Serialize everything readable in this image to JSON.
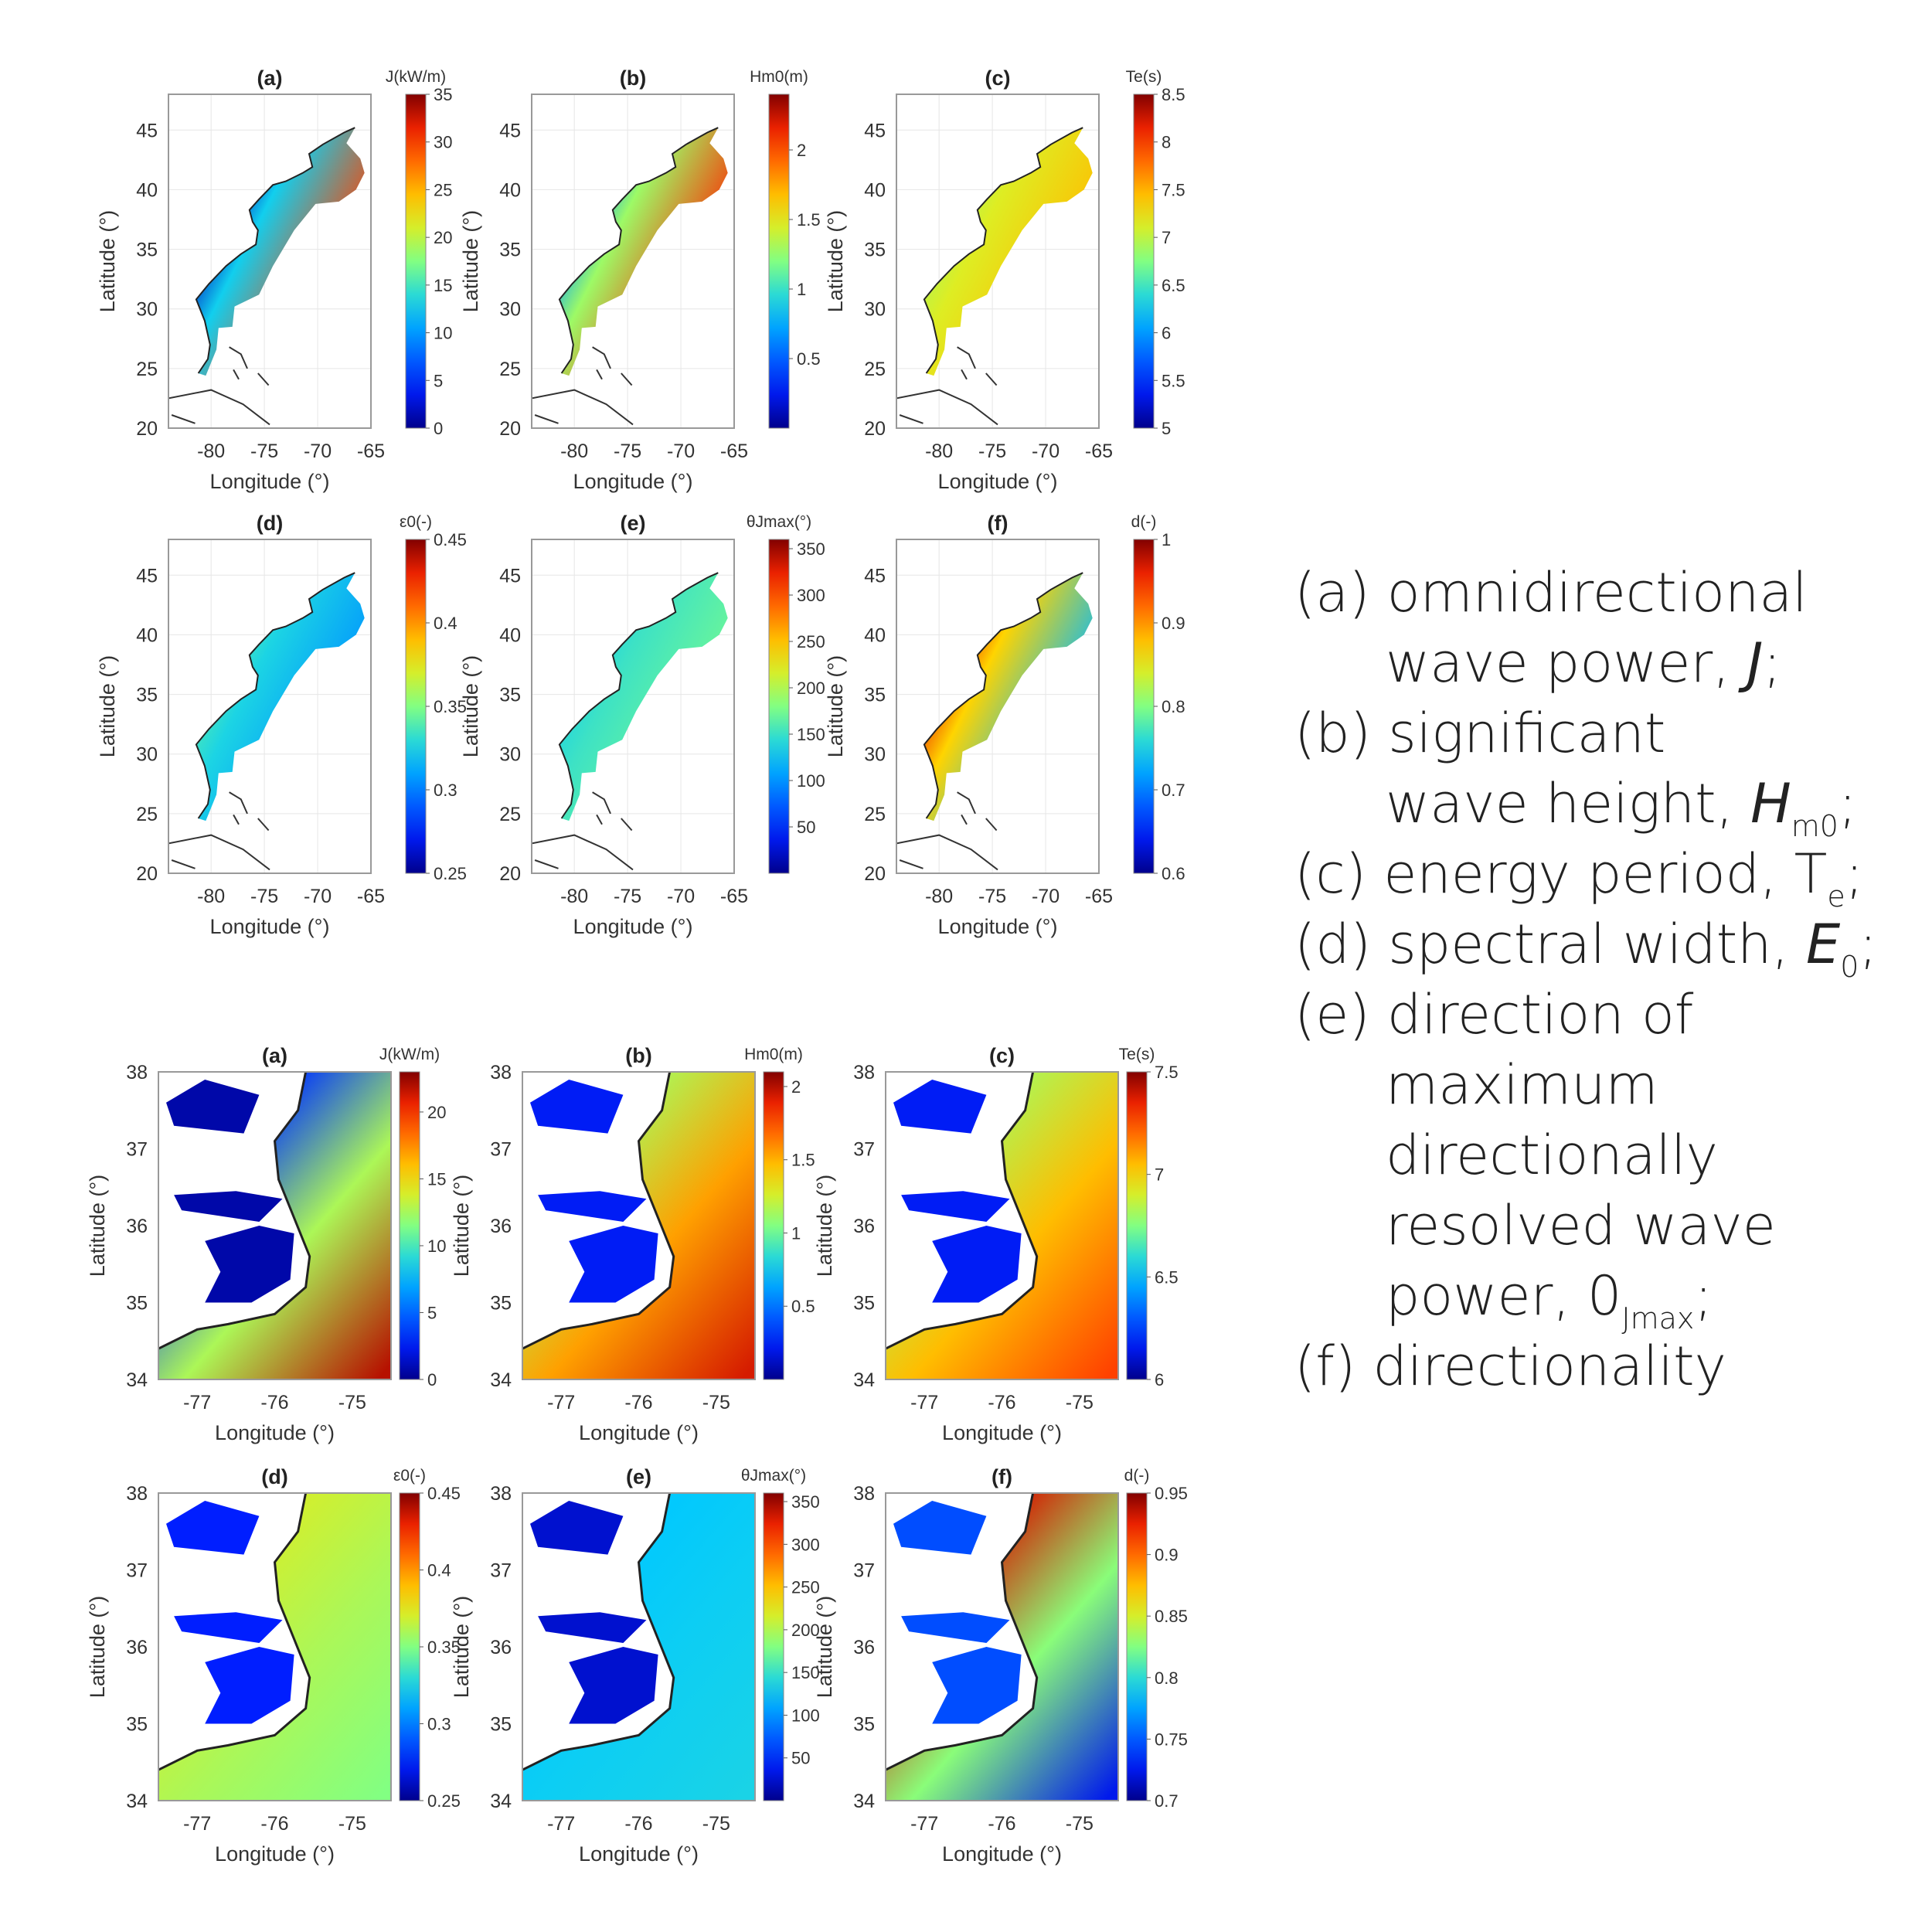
{
  "panel_titles": [
    "(a)",
    "(b)",
    "(c)",
    "(d)",
    "(e)",
    "(f)"
  ],
  "colorbar_titles": [
    "J(kW/m)",
    "Hm0(m)",
    "Te(s)",
    "ε0(-)",
    "θJmax(°)",
    "d(-)"
  ],
  "axis_labels": {
    "x": "Longitude (°)",
    "y": "Latitude (°)"
  },
  "legend": {
    "a_prefix": "(a) omnidirectional",
    "a_line2": "wave power, ",
    "a_sym": "J",
    "a_end": ";",
    "b_prefix": "(b) significant",
    "b_line2": "wave height, ",
    "b_sym": "H",
    "b_sub": "m0",
    "b_end": ";",
    "c_line": "(c) energy period, T",
    "c_sub": "e",
    "c_end": ";",
    "d_line": "(d) spectral width, ",
    "d_sym": "E",
    "d_sub": "0",
    "d_end": ";",
    "e_prefix": "(e) direction of",
    "e_line2": "maximum",
    "e_line3": "directionally",
    "e_line4": "resolved wave",
    "e_line5": "power, 0",
    "e_sub": "Jmax",
    "e_end": ";",
    "f_line": "(f) directionality"
  },
  "chart_data": [
    {
      "type": "heatmap",
      "group": "East Coast",
      "title": "(a)",
      "xlabel": "Longitude (°)",
      "ylabel": "Latitude (°)",
      "xlim": [
        -84,
        -65
      ],
      "ylim": [
        20,
        48
      ],
      "xticks": [
        -80,
        -75,
        -70,
        -65
      ],
      "yticks": [
        20,
        25,
        30,
        35,
        40,
        45
      ],
      "colorbar": {
        "label": "J(kW/m)",
        "range": [
          0,
          35
        ],
        "ticks": [
          "0",
          "5",
          "10",
          "15",
          "20",
          "25",
          "30",
          "35"
        ]
      },
      "colormap": "jet",
      "field": {
        "coast": 0.05,
        "offshore": 0.85
      }
    },
    {
      "type": "heatmap",
      "group": "East Coast",
      "title": "(b)",
      "xlabel": "Longitude (°)",
      "ylabel": "Latitude (°)",
      "xlim": [
        -84,
        -65
      ],
      "ylim": [
        20,
        48
      ],
      "xticks": [
        -80,
        -75,
        -70,
        -65
      ],
      "yticks": [
        20,
        25,
        30,
        35,
        40,
        45
      ],
      "colorbar": {
        "label": "Hm0(m)",
        "range": [
          0,
          2.4
        ],
        "ticks": [
          "0.5",
          "1",
          "1.5",
          "2"
        ]
      },
      "colormap": "jet",
      "field": {
        "coast": 0.3,
        "offshore": 0.88
      }
    },
    {
      "type": "heatmap",
      "group": "East Coast",
      "title": "(c)",
      "xlabel": "Longitude (°)",
      "ylabel": "Latitude (°)",
      "xlim": [
        -84,
        -65
      ],
      "ylim": [
        20,
        48
      ],
      "xticks": [
        -80,
        -75,
        -70,
        -65
      ],
      "yticks": [
        20,
        25,
        30,
        35,
        40,
        45
      ],
      "colorbar": {
        "label": "Te(s)",
        "range": [
          5,
          8.5
        ],
        "ticks": [
          "5",
          "5.5",
          "6",
          "6.5",
          "7",
          "7.5",
          "8",
          "8.5"
        ]
      },
      "colormap": "jet",
      "field": {
        "coast": 0.55,
        "offshore": 0.7
      }
    },
    {
      "type": "heatmap",
      "group": "East Coast",
      "title": "(d)",
      "xlabel": "Longitude (°)",
      "ylabel": "Latitude (°)",
      "xlim": [
        -84,
        -65
      ],
      "ylim": [
        20,
        48
      ],
      "xticks": [
        -80,
        -75,
        -70,
        -65
      ],
      "yticks": [
        20,
        25,
        30,
        35,
        40,
        45
      ],
      "colorbar": {
        "label": "ε0(-)",
        "range": [
          0.25,
          0.45
        ],
        "ticks": [
          "0.25",
          "0.3",
          "0.35",
          "0.4",
          "0.45"
        ]
      },
      "colormap": "jet",
      "field": {
        "coast": 0.45,
        "offshore": 0.28
      }
    },
    {
      "type": "heatmap",
      "group": "East Coast",
      "title": "(e)",
      "xlabel": "Longitude (°)",
      "ylabel": "Latitude (°)",
      "xlim": [
        -84,
        -65
      ],
      "ylim": [
        20,
        48
      ],
      "xticks": [
        -80,
        -75,
        -70,
        -65
      ],
      "yticks": [
        20,
        25,
        30,
        35,
        40,
        45
      ],
      "colorbar": {
        "label": "θJmax(°)",
        "range": [
          0,
          360
        ],
        "ticks": [
          "50",
          "100",
          "150",
          "200",
          "250",
          "300",
          "350"
        ]
      },
      "colormap": "jet",
      "field": {
        "coast": 0.38,
        "offshore": 0.48
      }
    },
    {
      "type": "heatmap",
      "group": "East Coast",
      "title": "(f)",
      "xlabel": "Longitude (°)",
      "ylabel": "Latitude (°)",
      "xlim": [
        -84,
        -65
      ],
      "ylim": [
        20,
        48
      ],
      "xticks": [
        -80,
        -75,
        -70,
        -65
      ],
      "yticks": [
        20,
        25,
        30,
        35,
        40,
        45
      ],
      "colorbar": {
        "label": "d(-)",
        "range": [
          0.6,
          1
        ],
        "ticks": [
          "0.6",
          "0.7",
          "0.8",
          "0.9",
          "1"
        ]
      },
      "colormap": "jet",
      "field": {
        "coast": 0.9,
        "offshore": 0.33
      }
    },
    {
      "type": "heatmap",
      "group": "North Carolina",
      "title": "(a)",
      "xlabel": "Longitude (°)",
      "ylabel": "Latitude (°)",
      "xlim": [
        -77.5,
        -74.5
      ],
      "ylim": [
        34,
        38
      ],
      "xticks": [
        -77,
        -76,
        -75
      ],
      "yticks": [
        34,
        35,
        36,
        37,
        38
      ],
      "colorbar": {
        "label": "J(kW/m)",
        "range": [
          0,
          23
        ],
        "ticks": [
          "0",
          "5",
          "10",
          "15",
          "20"
        ]
      },
      "colormap": "jet",
      "field": {
        "coast": 0.15,
        "offshore": 0.95
      }
    },
    {
      "type": "heatmap",
      "group": "North Carolina",
      "title": "(b)",
      "xlabel": "Longitude (°)",
      "ylabel": "Latitude (°)",
      "xlim": [
        -77.5,
        -74.5
      ],
      "ylim": [
        34,
        38
      ],
      "xticks": [
        -77,
        -76,
        -75
      ],
      "yticks": [
        34,
        35,
        36,
        37,
        38
      ],
      "colorbar": {
        "label": "Hm0(m)",
        "range": [
          0,
          2.1
        ],
        "ticks": [
          "0.5",
          "1",
          "1.5",
          "2"
        ]
      },
      "colormap": "jet",
      "field": {
        "coast": 0.55,
        "offshore": 0.92
      }
    },
    {
      "type": "heatmap",
      "group": "North Carolina",
      "title": "(c)",
      "xlabel": "Longitude (°)",
      "ylabel": "Latitude (°)",
      "xlim": [
        -77.5,
        -74.5
      ],
      "ylim": [
        34,
        38
      ],
      "xticks": [
        -77,
        -76,
        -75
      ],
      "yticks": [
        34,
        35,
        36,
        37,
        38
      ],
      "colorbar": {
        "label": "Te(s)",
        "range": [
          6,
          7.5
        ],
        "ticks": [
          "6",
          "6.5",
          "7",
          "7.5"
        ]
      },
      "colormap": "jet",
      "field": {
        "coast": 0.55,
        "offshore": 0.85
      }
    },
    {
      "type": "heatmap",
      "group": "North Carolina",
      "title": "(d)",
      "xlabel": "Longitude (°)",
      "ylabel": "Latitude (°)",
      "xlim": [
        -77.5,
        -74.5
      ],
      "ylim": [
        34,
        38
      ],
      "xticks": [
        -77,
        -76,
        -75
      ],
      "yticks": [
        34,
        35,
        36,
        37,
        38
      ],
      "colorbar": {
        "label": "ε0(-)",
        "range": [
          0.25,
          0.45
        ],
        "ticks": [
          "0.25",
          "0.3",
          "0.35",
          "0.4",
          "0.45"
        ]
      },
      "colormap": "jet",
      "field": {
        "coast": 0.6,
        "offshore": 0.5
      }
    },
    {
      "type": "heatmap",
      "group": "North Carolina",
      "title": "(e)",
      "xlabel": "Longitude (°)",
      "ylabel": "Latitude (°)",
      "xlim": [
        -77.5,
        -74.5
      ],
      "ylim": [
        34,
        38
      ],
      "xticks": [
        -77,
        -76,
        -75
      ],
      "yticks": [
        34,
        35,
        36,
        37,
        38
      ],
      "colorbar": {
        "label": "θJmax(°)",
        "range": [
          0,
          360
        ],
        "ticks": [
          "50",
          "100",
          "150",
          "200",
          "250",
          "300",
          "350"
        ]
      },
      "colormap": "jet",
      "field": {
        "coast": 0.35,
        "offshore": 0.38
      }
    },
    {
      "type": "heatmap",
      "group": "North Carolina",
      "title": "(f)",
      "xlabel": "Longitude (°)",
      "ylabel": "Latitude (°)",
      "xlim": [
        -77.5,
        -74.5
      ],
      "ylim": [
        34,
        38
      ],
      "xticks": [
        -77,
        -76,
        -75
      ],
      "yticks": [
        34,
        35,
        36,
        37,
        38
      ],
      "colorbar": {
        "label": "d(-)",
        "range": [
          0.7,
          0.95
        ],
        "ticks": [
          "0.7",
          "0.75",
          "0.8",
          "0.85",
          "0.9",
          "0.95"
        ]
      },
      "colormap": "jet",
      "field": {
        "coast": 0.92,
        "offshore": 0.1
      }
    }
  ]
}
